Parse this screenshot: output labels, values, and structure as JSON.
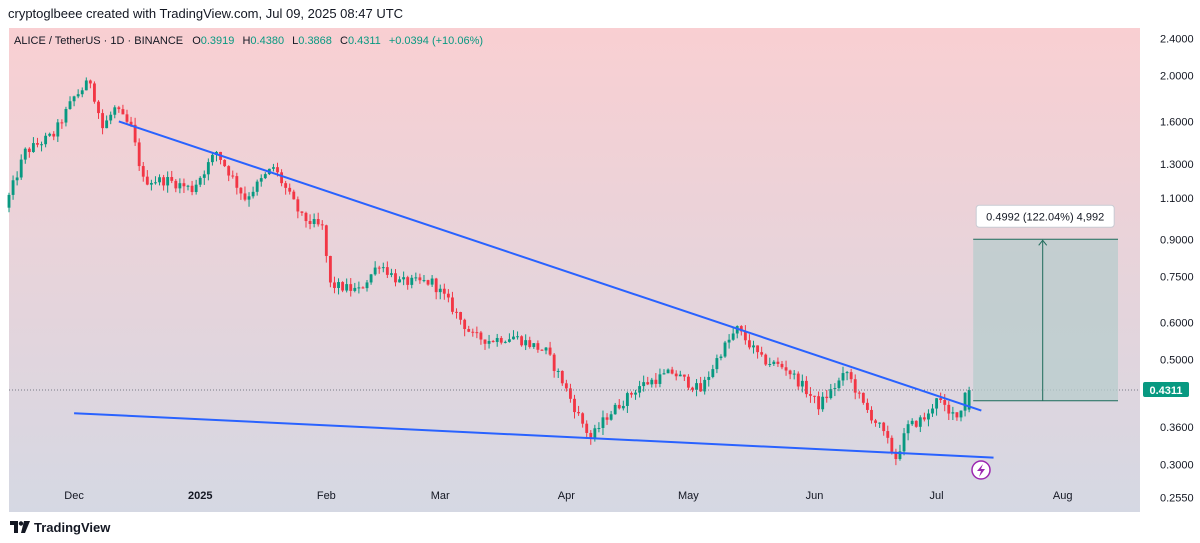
{
  "header": {
    "attribution": "cryptoglbeee created with TradingView.com, Jul 09, 2025 08:47 UTC"
  },
  "legend": {
    "symbol": "ALICE / TetherUS · 1D · BINANCE",
    "open_label": "O",
    "open": "0.3919",
    "high_label": "H",
    "high": "0.4380",
    "low_label": "L",
    "low": "0.3868",
    "close_label": "C",
    "close": "0.4311",
    "change": "+0.0394 (+10.06%)"
  },
  "price_axis": {
    "ticks": [
      "2.4000",
      "2.0000",
      "1.6000",
      "1.3000",
      "1.1000",
      "0.9000",
      "0.7500",
      "0.6000",
      "0.5000",
      "0.3600",
      "0.3000",
      "0.2550"
    ],
    "current_price": "0.4311"
  },
  "time_axis": {
    "ticks": [
      "Dec",
      "2025",
      "Feb",
      "Mar",
      "Apr",
      "May",
      "Jun",
      "Jul",
      "Aug"
    ]
  },
  "measure_tool": {
    "label": "0.4992 (122.04%) 4,992"
  },
  "brand": {
    "name": "TradingView"
  },
  "colors": {
    "up": "#089981",
    "down": "#f23645",
    "trendline": "#2962ff",
    "bg_top": "#f9cfd2",
    "bg_bottom": "#d6d8e3",
    "measure_fill": "#b7cccc",
    "measure_line": "#1e6b5a"
  },
  "chart_data": {
    "type": "candlestick",
    "y_scale": "log",
    "ylim": [
      0.24,
      2.5
    ],
    "xlim": [
      "2024-11-15",
      "2025-08-20"
    ],
    "price_path": [
      [
        "2024-11-15",
        1.05
      ],
      [
        "2024-11-20",
        1.38
      ],
      [
        "2024-11-27",
        1.5
      ],
      [
        "2024-12-02",
        1.8
      ],
      [
        "2024-12-06",
        1.95
      ],
      [
        "2024-12-09",
        1.55
      ],
      [
        "2024-12-12",
        1.7
      ],
      [
        "2024-12-16",
        1.55
      ],
      [
        "2024-12-19",
        1.2
      ],
      [
        "2024-12-25",
        1.2
      ],
      [
        "2024-12-31",
        1.15
      ],
      [
        "2025-01-06",
        1.38
      ],
      [
        "2025-01-13",
        1.1
      ],
      [
        "2025-01-20",
        1.28
      ],
      [
        "2025-01-27",
        1.0
      ],
      [
        "2025-02-01",
        0.95
      ],
      [
        "2025-02-03",
        0.72
      ],
      [
        "2025-02-10",
        0.7
      ],
      [
        "2025-02-15",
        0.8
      ],
      [
        "2025-02-20",
        0.73
      ],
      [
        "2025-02-28",
        0.73
      ],
      [
        "2025-03-03",
        0.68
      ],
      [
        "2025-03-10",
        0.56
      ],
      [
        "2025-03-14",
        0.55
      ],
      [
        "2025-03-20",
        0.56
      ],
      [
        "2025-03-28",
        0.52
      ],
      [
        "2025-04-01",
        0.45
      ],
      [
        "2025-04-05",
        0.38
      ],
      [
        "2025-04-08",
        0.34
      ],
      [
        "2025-04-12",
        0.38
      ],
      [
        "2025-04-20",
        0.44
      ],
      [
        "2025-04-28",
        0.47
      ],
      [
        "2025-05-05",
        0.43
      ],
      [
        "2025-05-10",
        0.52
      ],
      [
        "2025-05-14",
        0.58
      ],
      [
        "2025-05-20",
        0.5
      ],
      [
        "2025-05-26",
        0.48
      ],
      [
        "2025-05-30",
        0.44
      ],
      [
        "2025-06-03",
        0.4
      ],
      [
        "2025-06-10",
        0.47
      ],
      [
        "2025-06-14",
        0.4
      ],
      [
        "2025-06-18",
        0.36
      ],
      [
        "2025-06-22",
        0.31
      ],
      [
        "2025-06-25",
        0.36
      ],
      [
        "2025-06-30",
        0.38
      ],
      [
        "2025-07-02",
        0.42
      ],
      [
        "2025-07-05",
        0.38
      ],
      [
        "2025-07-08",
        0.39
      ],
      [
        "2025-07-09",
        0.4311
      ]
    ],
    "last_candle": {
      "date": "2025-07-09",
      "open": 0.3919,
      "high": 0.438,
      "low": 0.3868,
      "close": 0.4311
    },
    "trendlines": [
      {
        "from": [
          "2024-12-12",
          1.6
        ],
        "to": [
          "2025-07-12",
          0.39
        ]
      },
      {
        "from": [
          "2024-12-01",
          0.385
        ],
        "to": [
          "2025-07-15",
          0.31
        ]
      }
    ],
    "measure_range": {
      "from_date": "2025-07-10",
      "to_date": "2025-08-22",
      "low": 0.409,
      "high": 0.9
    }
  }
}
